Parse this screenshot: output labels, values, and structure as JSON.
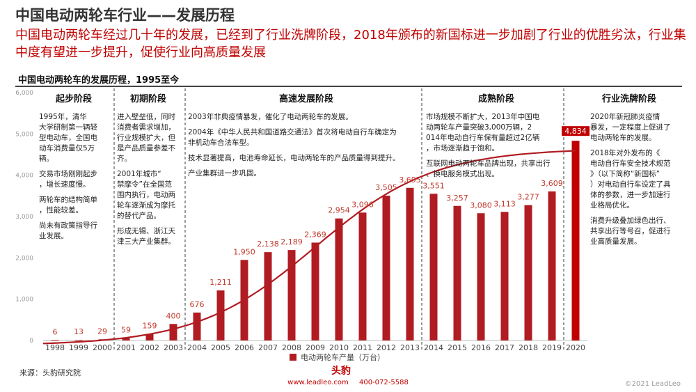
{
  "header": {
    "title": "中国电动两轮车行业——发展历程",
    "subtitle": "中国电动两轮车经过几十年的发展，已经到了行业洗牌阶段，2018年颁布的新国标进一步加剧了行业的优胜劣汰，行业集中度有望进一步提升，促使行业向高质量发展"
  },
  "chart_data": {
    "type": "bar",
    "title": "中国电动两轮车的发展历程，1995至今",
    "categories": [
      "1998",
      "1999",
      "2000",
      "2001",
      "2002",
      "2003",
      "2004",
      "2005",
      "2006",
      "2007",
      "2008",
      "2009",
      "2010",
      "2011",
      "2012",
      "2013",
      "2014",
      "2015",
      "2016",
      "2017",
      "2018",
      "2019",
      "2020"
    ],
    "series": [
      {
        "name": "电动两轮车产量（万台）",
        "values": [
          6,
          13,
          29,
          59,
          159,
          400,
          676,
          1211,
          1950,
          2138,
          2189,
          2369,
          2954,
          3096,
          3505,
          3695,
          3551,
          3257,
          3080,
          3113,
          3277,
          3609,
          4834
        ]
      }
    ],
    "value_labels": [
      "6",
      "13",
      "29",
      "59",
      "159",
      "400",
      "676",
      "1,211",
      "1,950",
      "2,138",
      "2,189",
      "2,369",
      "2,954",
      "3,096",
      "3,505",
      "3,695",
      "3,551",
      "3,257",
      "3,080",
      "3,113",
      "3,277",
      "3,609",
      "4,834"
    ],
    "y_ticks": [
      "0",
      "1,000",
      "2,000",
      "3,000",
      "4,000",
      "5,000",
      "6,000"
    ],
    "ylim": [
      0,
      6000
    ],
    "trend_curve": true,
    "legend_position": "bottom",
    "grid": false,
    "colors": {
      "bar": "#b01c22",
      "curve": "#b01c22",
      "last_bar": "#c00000"
    },
    "stages": [
      {
        "name": "起步阶段",
        "paragraphs": [
          "1995年，清华大学研制第一辆轻型电动车，全国电动车消费量仅5万辆。",
          "交易市场刚刚起步，增长速度慢。",
          "两轮车的结构简单，性能较差。",
          "尚未有政策指导行业发展。"
        ]
      },
      {
        "name": "初期阶段",
        "paragraphs": [
          "进入壁垒低，同时消费者需求增加，行业规模扩大，但是产品质量参差不齐。",
          "2001年城市“禁摩令”在全国范围内执行，电动两轮车逐渐成为摩托的替代产品。",
          "形成无锡、浙江天津三大产业集群。"
        ]
      },
      {
        "name": "高速发展阶段",
        "paragraphs": [
          "2003年非典疫情暴发，催化了电动两轮车的发展。",
          "2004年《中华人民共和国道路交通法》首次将电动自行车确定为非机动车合法车型。",
          "技术显著提高，电池寿命延长，电动两轮车的产品质量得到提升。",
          "产业集群进一步巩固。"
        ]
      },
      {
        "name": "成熟阶段",
        "paragraphs": [
          "市场规模不断扩大，2013年中国电动两轮车产量突破3,000万辆，2014年电动自行车保有量超过2亿辆，市场逐渐趋于饱和。",
          "互联网电动两轮车品牌出现，共享出行、换电服务模式出现。"
        ]
      },
      {
        "name": "行业洗牌阶段",
        "paragraphs": [
          "2020年新冠肺炎疫情暴发，一定程度上促进了电动两轮车的发展。",
          "2018年对外发布的《电动自行车安全技术规范》（以下简称“新国标”）对电动自行车设定了具体的参数，进一步加速行业格局优化。",
          "消费升级叠加绿色出行、共享出行等号召，促进行业高质量发展。"
        ]
      }
    ]
  },
  "footer": {
    "source": "来源：头豹研究院",
    "brand": "头豹",
    "website": "www.leadleo.com",
    "phone": "400-072-5588",
    "copyright": "©2021 LeadLeo"
  }
}
